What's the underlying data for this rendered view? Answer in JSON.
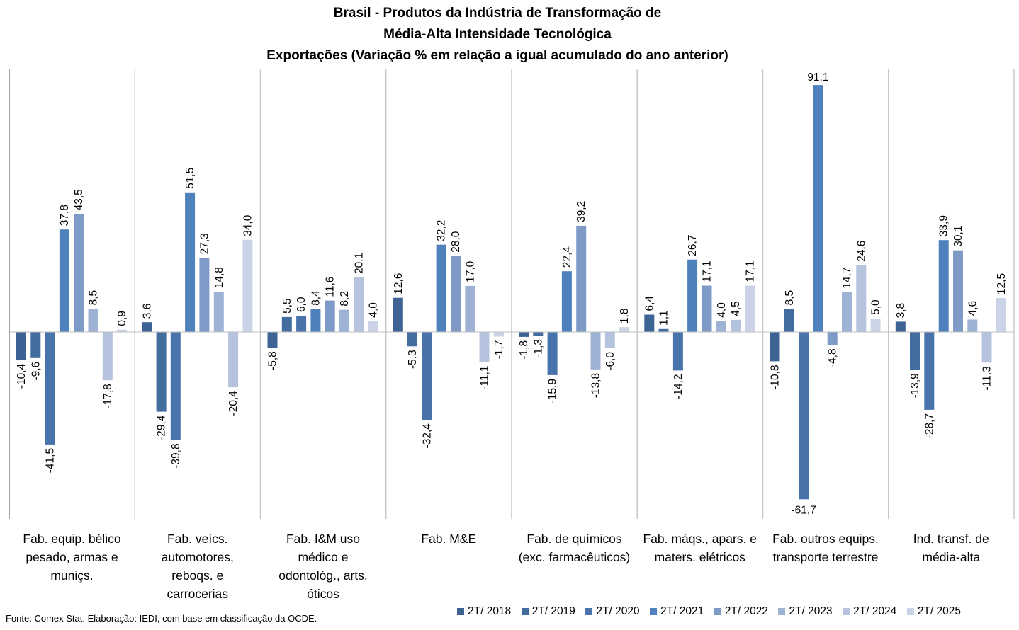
{
  "chart_data": {
    "type": "bar",
    "title": [
      "Brasil - Produtos da Indústria de Transformação de",
      "Média-Alta Intensidade Tecnológica",
      "Exportações (Variação % em relação a igual acumulado do ano anterior)"
    ],
    "xlabel": "",
    "ylabel": "",
    "ylim": [
      -61.7,
      91.1
    ],
    "grid": false,
    "legend_position": "bottom-right",
    "categories": [
      [
        "Fab. equip. bélico",
        "pesado, armas e",
        "muniçs."
      ],
      [
        "Fab. veícs.",
        "automotores,",
        "reboqs. e",
        "carrocerias"
      ],
      [
        "Fab. I&M uso",
        "médico e",
        "odontológ., arts.",
        "óticos"
      ],
      [
        "Fab. M&E"
      ],
      [
        "Fab. de químicos",
        "(exc. farmacêuticos)"
      ],
      [
        "Fab. máqs., apars. e",
        "maters. elétricos"
      ],
      [
        "Fab. outros equips.",
        "transporte terrestre"
      ],
      [
        "Ind. transf. de",
        "média-alta"
      ]
    ],
    "series": [
      {
        "name": "2T/ 2018",
        "color": "#3D6394",
        "values": [
          -10.4,
          3.6,
          -5.8,
          12.6,
          -1.8,
          6.4,
          -10.8,
          3.8
        ]
      },
      {
        "name": "2T/ 2019",
        "color": "#436C9F",
        "values": [
          -9.6,
          -29.4,
          5.5,
          -5.3,
          -1.3,
          1.1,
          8.5,
          -13.9
        ]
      },
      {
        "name": "2T/ 2020",
        "color": "#4874AB",
        "values": [
          -41.5,
          -39.8,
          6.0,
          -32.4,
          -15.9,
          -14.2,
          -61.7,
          -28.7
        ]
      },
      {
        "name": "2T/ 2021",
        "color": "#4F81BD",
        "values": [
          37.8,
          51.5,
          8.4,
          32.2,
          22.4,
          26.7,
          91.1,
          33.9
        ]
      },
      {
        "name": "2T/ 2022",
        "color": "#7E9BC7",
        "values": [
          43.5,
          27.3,
          11.6,
          28.0,
          39.2,
          17.1,
          -4.8,
          30.1
        ]
      },
      {
        "name": "2T/ 2023",
        "color": "#9EB2D5",
        "values": [
          8.5,
          14.8,
          8.2,
          17.0,
          -13.8,
          4.0,
          14.7,
          4.6
        ]
      },
      {
        "name": "2T/ 2024",
        "color": "#B5C3DF",
        "values": [
          -17.8,
          -20.4,
          20.1,
          -11.1,
          -6.0,
          4.5,
          24.6,
          -11.3
        ]
      },
      {
        "name": "2T/ 2025",
        "color": "#CBD4E6",
        "values": [
          0.9,
          34.0,
          4.0,
          -1.7,
          1.8,
          17.1,
          5.0,
          12.5
        ]
      }
    ],
    "data_labels": [
      [
        "-10,4",
        "3,6",
        "-5,8",
        "12,6",
        "-1,8",
        "6,4",
        "-10,8",
        "3,8"
      ],
      [
        "-9,6",
        "-29,4",
        "5,5",
        "-5,3",
        "-1,3",
        "1,1",
        "8,5",
        "-13,9"
      ],
      [
        "-41,5",
        "-39,8",
        "6,0",
        "-32,4",
        "-15,9",
        "-14,2",
        "-61,7",
        "-28,7"
      ],
      [
        "37,8",
        "51,5",
        "8,4",
        "32,2",
        "22,4",
        "26,7",
        "91,1",
        "33,9"
      ],
      [
        "43,5",
        "27,3",
        "11,6",
        "28,0",
        "39,2",
        "17,1",
        "-4,8",
        "30,1"
      ],
      [
        "8,5",
        "14,8",
        "8,2",
        "17,0",
        "-13,8",
        "4,0",
        "14,7",
        "4,6"
      ],
      [
        "-17,8",
        "-20,4",
        "20,1",
        "-11,1",
        "-6,0",
        "4,5",
        "24,6",
        "-11,3"
      ],
      [
        "0,9",
        "34,0",
        "4,0",
        "-1,7",
        "1,8",
        "17,1",
        "5,0",
        "12,5"
      ]
    ],
    "source": "Fonte: Comex Stat. Elaboração: IEDI, com base em classificação da OCDE."
  }
}
